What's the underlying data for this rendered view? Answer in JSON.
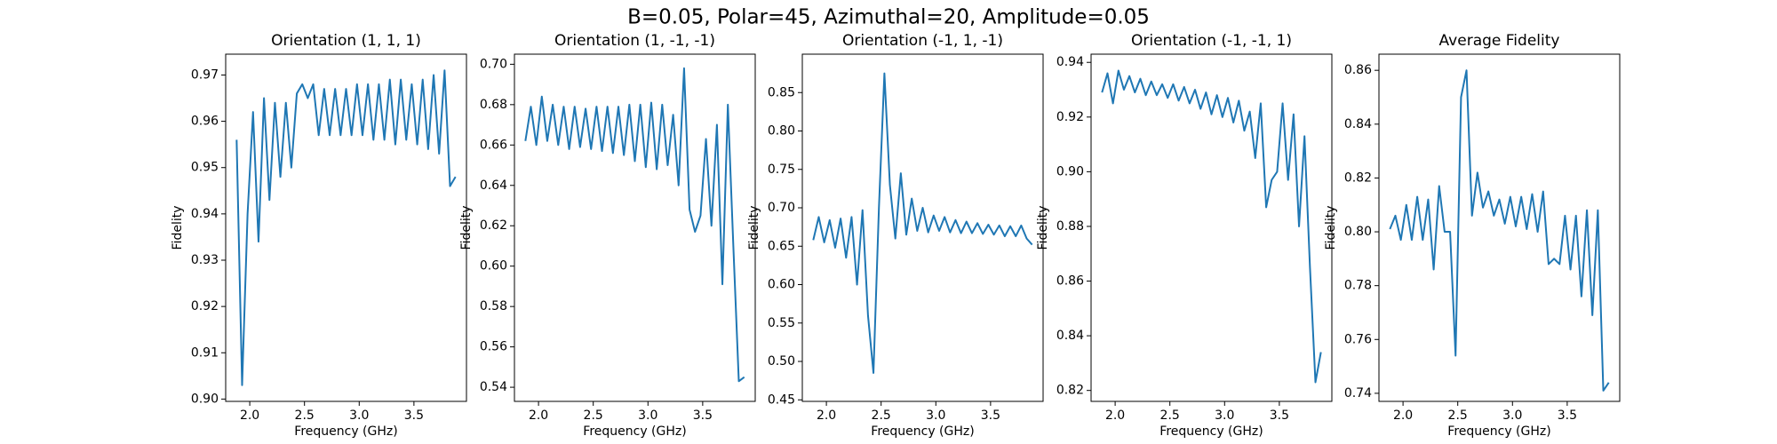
{
  "title": "B=0.05, Polar=45, Azimuthal=20, Amplitude=0.05",
  "chart_data": [
    {
      "type": "line",
      "title": "Orientation (1, 1, 1)",
      "xlabel": "Frequency (GHz)",
      "ylabel": "Fidelity",
      "color": "#1f77b4",
      "x": [
        1.88,
        1.93,
        1.98,
        2.03,
        2.08,
        2.13,
        2.18,
        2.23,
        2.28,
        2.33,
        2.38,
        2.43,
        2.48,
        2.53,
        2.58,
        2.63,
        2.68,
        2.73,
        2.78,
        2.83,
        2.88,
        2.93,
        2.98,
        3.03,
        3.08,
        3.13,
        3.18,
        3.23,
        3.28,
        3.33,
        3.38,
        3.43,
        3.48,
        3.53,
        3.58,
        3.63,
        3.68,
        3.73,
        3.78,
        3.83,
        3.88
      ],
      "values": [
        0.956,
        0.903,
        0.94,
        0.962,
        0.934,
        0.965,
        0.943,
        0.964,
        0.948,
        0.964,
        0.95,
        0.966,
        0.968,
        0.965,
        0.968,
        0.957,
        0.967,
        0.957,
        0.967,
        0.957,
        0.967,
        0.957,
        0.968,
        0.957,
        0.968,
        0.956,
        0.968,
        0.956,
        0.969,
        0.955,
        0.969,
        0.956,
        0.968,
        0.955,
        0.969,
        0.954,
        0.97,
        0.953,
        0.971,
        0.946,
        0.948
      ],
      "xlim": [
        1.78,
        3.98
      ],
      "xticks": [
        {
          "value": 2,
          "label": "2.0"
        },
        {
          "value": 2.5,
          "label": "2.5"
        },
        {
          "value": 3,
          "label": "3.0"
        },
        {
          "value": 3.5,
          "label": "3.5"
        }
      ],
      "ylim": [
        0.8995,
        0.9745
      ],
      "yticks": [
        {
          "value": 0.9,
          "label": "0.90"
        },
        0.91,
        0.92,
        0.93,
        0.94,
        0.95,
        0.96,
        0.97
      ]
    },
    {
      "type": "line",
      "title": "Orientation (1, -1, -1)",
      "xlabel": "Frequency (GHz)",
      "ylabel": "Fidelity",
      "color": "#1f77b4",
      "x": [
        1.88,
        1.93,
        1.98,
        2.03,
        2.08,
        2.13,
        2.18,
        2.23,
        2.28,
        2.33,
        2.38,
        2.43,
        2.48,
        2.53,
        2.58,
        2.63,
        2.68,
        2.73,
        2.78,
        2.83,
        2.88,
        2.93,
        2.98,
        3.03,
        3.08,
        3.13,
        3.18,
        3.23,
        3.28,
        3.33,
        3.38,
        3.43,
        3.48,
        3.53,
        3.58,
        3.63,
        3.68,
        3.73,
        3.78,
        3.83,
        3.88
      ],
      "values": [
        0.662,
        0.679,
        0.66,
        0.684,
        0.662,
        0.68,
        0.66,
        0.679,
        0.658,
        0.679,
        0.659,
        0.678,
        0.658,
        0.679,
        0.657,
        0.679,
        0.656,
        0.679,
        0.655,
        0.68,
        0.652,
        0.68,
        0.649,
        0.681,
        0.648,
        0.68,
        0.65,
        0.675,
        0.64,
        0.698,
        0.628,
        0.617,
        0.625,
        0.663,
        0.62,
        0.67,
        0.591,
        0.68,
        0.61,
        0.543,
        0.545
      ],
      "xlim": [
        1.78,
        3.98
      ],
      "xticks": [
        {
          "value": 2,
          "label": "2.0"
        },
        {
          "value": 2.5,
          "label": "2.5"
        },
        {
          "value": 3,
          "label": "3.0"
        },
        {
          "value": 3.5,
          "label": "3.5"
        }
      ],
      "ylim": [
        0.533,
        0.705
      ],
      "yticks": [
        0.54,
        0.56,
        0.58,
        {
          "value": 0.6,
          "label": "0.60"
        },
        0.62,
        0.64,
        0.66,
        0.68,
        {
          "value": 0.7,
          "label": "0.70"
        }
      ]
    },
    {
      "type": "line",
      "title": "Orientation (-1, 1, -1)",
      "xlabel": "Frequency (GHz)",
      "ylabel": "Fidelity",
      "color": "#1f77b4",
      "x": [
        1.88,
        1.93,
        1.98,
        2.03,
        2.08,
        2.13,
        2.18,
        2.23,
        2.28,
        2.33,
        2.38,
        2.43,
        2.48,
        2.53,
        2.58,
        2.63,
        2.68,
        2.73,
        2.78,
        2.83,
        2.88,
        2.93,
        2.98,
        3.03,
        3.08,
        3.13,
        3.18,
        3.23,
        3.28,
        3.33,
        3.38,
        3.43,
        3.48,
        3.53,
        3.58,
        3.63,
        3.68,
        3.73,
        3.78,
        3.83,
        3.88
      ],
      "values": [
        0.658,
        0.688,
        0.655,
        0.684,
        0.648,
        0.686,
        0.635,
        0.688,
        0.6,
        0.697,
        0.56,
        0.485,
        0.7,
        0.875,
        0.73,
        0.66,
        0.745,
        0.665,
        0.712,
        0.67,
        0.7,
        0.668,
        0.69,
        0.67,
        0.688,
        0.668,
        0.684,
        0.667,
        0.682,
        0.667,
        0.68,
        0.666,
        0.678,
        0.665,
        0.677,
        0.663,
        0.676,
        0.663,
        0.677,
        0.66,
        0.652
      ],
      "xlim": [
        1.78,
        3.98
      ],
      "xticks": [
        {
          "value": 2,
          "label": "2.0"
        },
        {
          "value": 2.5,
          "label": "2.5"
        },
        {
          "value": 3,
          "label": "3.0"
        },
        {
          "value": 3.5,
          "label": "3.5"
        }
      ],
      "ylim": [
        0.448,
        0.9
      ],
      "yticks": [
        0.45,
        {
          "value": 0.5,
          "label": "0.50"
        },
        0.55,
        {
          "value": 0.6,
          "label": "0.60"
        },
        0.65,
        {
          "value": 0.7,
          "label": "0.70"
        },
        0.75,
        {
          "value": 0.8,
          "label": "0.80"
        },
        0.85
      ]
    },
    {
      "type": "line",
      "title": "Orientation (-1, -1, 1)",
      "xlabel": "Frequency (GHz)",
      "ylabel": "Fidelity",
      "color": "#1f77b4",
      "x": [
        1.88,
        1.93,
        1.98,
        2.03,
        2.08,
        2.13,
        2.18,
        2.23,
        2.28,
        2.33,
        2.38,
        2.43,
        2.48,
        2.53,
        2.58,
        2.63,
        2.68,
        2.73,
        2.78,
        2.83,
        2.88,
        2.93,
        2.98,
        3.03,
        3.08,
        3.13,
        3.18,
        3.23,
        3.28,
        3.33,
        3.38,
        3.43,
        3.48,
        3.53,
        3.58,
        3.63,
        3.68,
        3.73,
        3.78,
        3.83,
        3.88
      ],
      "values": [
        0.929,
        0.936,
        0.925,
        0.937,
        0.93,
        0.935,
        0.929,
        0.934,
        0.928,
        0.933,
        0.928,
        0.932,
        0.927,
        0.932,
        0.926,
        0.931,
        0.925,
        0.93,
        0.923,
        0.929,
        0.921,
        0.928,
        0.92,
        0.927,
        0.918,
        0.926,
        0.915,
        0.922,
        0.905,
        0.925,
        0.887,
        0.897,
        0.9,
        0.925,
        0.897,
        0.921,
        0.88,
        0.913,
        0.865,
        0.823,
        0.834
      ],
      "xlim": [
        1.78,
        3.98
      ],
      "xticks": [
        {
          "value": 2,
          "label": "2.0"
        },
        {
          "value": 2.5,
          "label": "2.5"
        },
        {
          "value": 3,
          "label": "3.0"
        },
        {
          "value": 3.5,
          "label": "3.5"
        }
      ],
      "ylim": [
        0.816,
        0.943
      ],
      "yticks": [
        0.82,
        0.84,
        0.86,
        0.88,
        {
          "value": 0.9,
          "label": "0.90"
        },
        0.92,
        0.94
      ]
    },
    {
      "type": "line",
      "title": "Average Fidelity",
      "xlabel": "Frequency (GHz)",
      "ylabel": "Fidelity",
      "color": "#1f77b4",
      "x": [
        1.88,
        1.93,
        1.98,
        2.03,
        2.08,
        2.13,
        2.18,
        2.23,
        2.28,
        2.33,
        2.38,
        2.43,
        2.48,
        2.53,
        2.58,
        2.63,
        2.68,
        2.73,
        2.78,
        2.83,
        2.88,
        2.93,
        2.98,
        3.03,
        3.08,
        3.13,
        3.18,
        3.23,
        3.28,
        3.33,
        3.38,
        3.43,
        3.48,
        3.53,
        3.58,
        3.63,
        3.68,
        3.73,
        3.78,
        3.83,
        3.88
      ],
      "values": [
        0.801,
        0.806,
        0.797,
        0.81,
        0.797,
        0.813,
        0.797,
        0.812,
        0.786,
        0.817,
        0.8,
        0.8,
        0.754,
        0.85,
        0.86,
        0.806,
        0.822,
        0.809,
        0.815,
        0.806,
        0.812,
        0.803,
        0.813,
        0.802,
        0.813,
        0.801,
        0.814,
        0.8,
        0.815,
        0.788,
        0.79,
        0.788,
        0.806,
        0.786,
        0.806,
        0.776,
        0.808,
        0.769,
        0.808,
        0.741,
        0.744
      ],
      "xlim": [
        1.78,
        3.98
      ],
      "xticks": [
        {
          "value": 2,
          "label": "2.0"
        },
        {
          "value": 2.5,
          "label": "2.5"
        },
        {
          "value": 3,
          "label": "3.0"
        },
        {
          "value": 3.5,
          "label": "3.5"
        }
      ],
      "ylim": [
        0.737,
        0.866
      ],
      "yticks": [
        0.74,
        0.76,
        0.78,
        {
          "value": 0.8,
          "label": "0.80"
        },
        0.82,
        0.84,
        0.86
      ]
    }
  ]
}
